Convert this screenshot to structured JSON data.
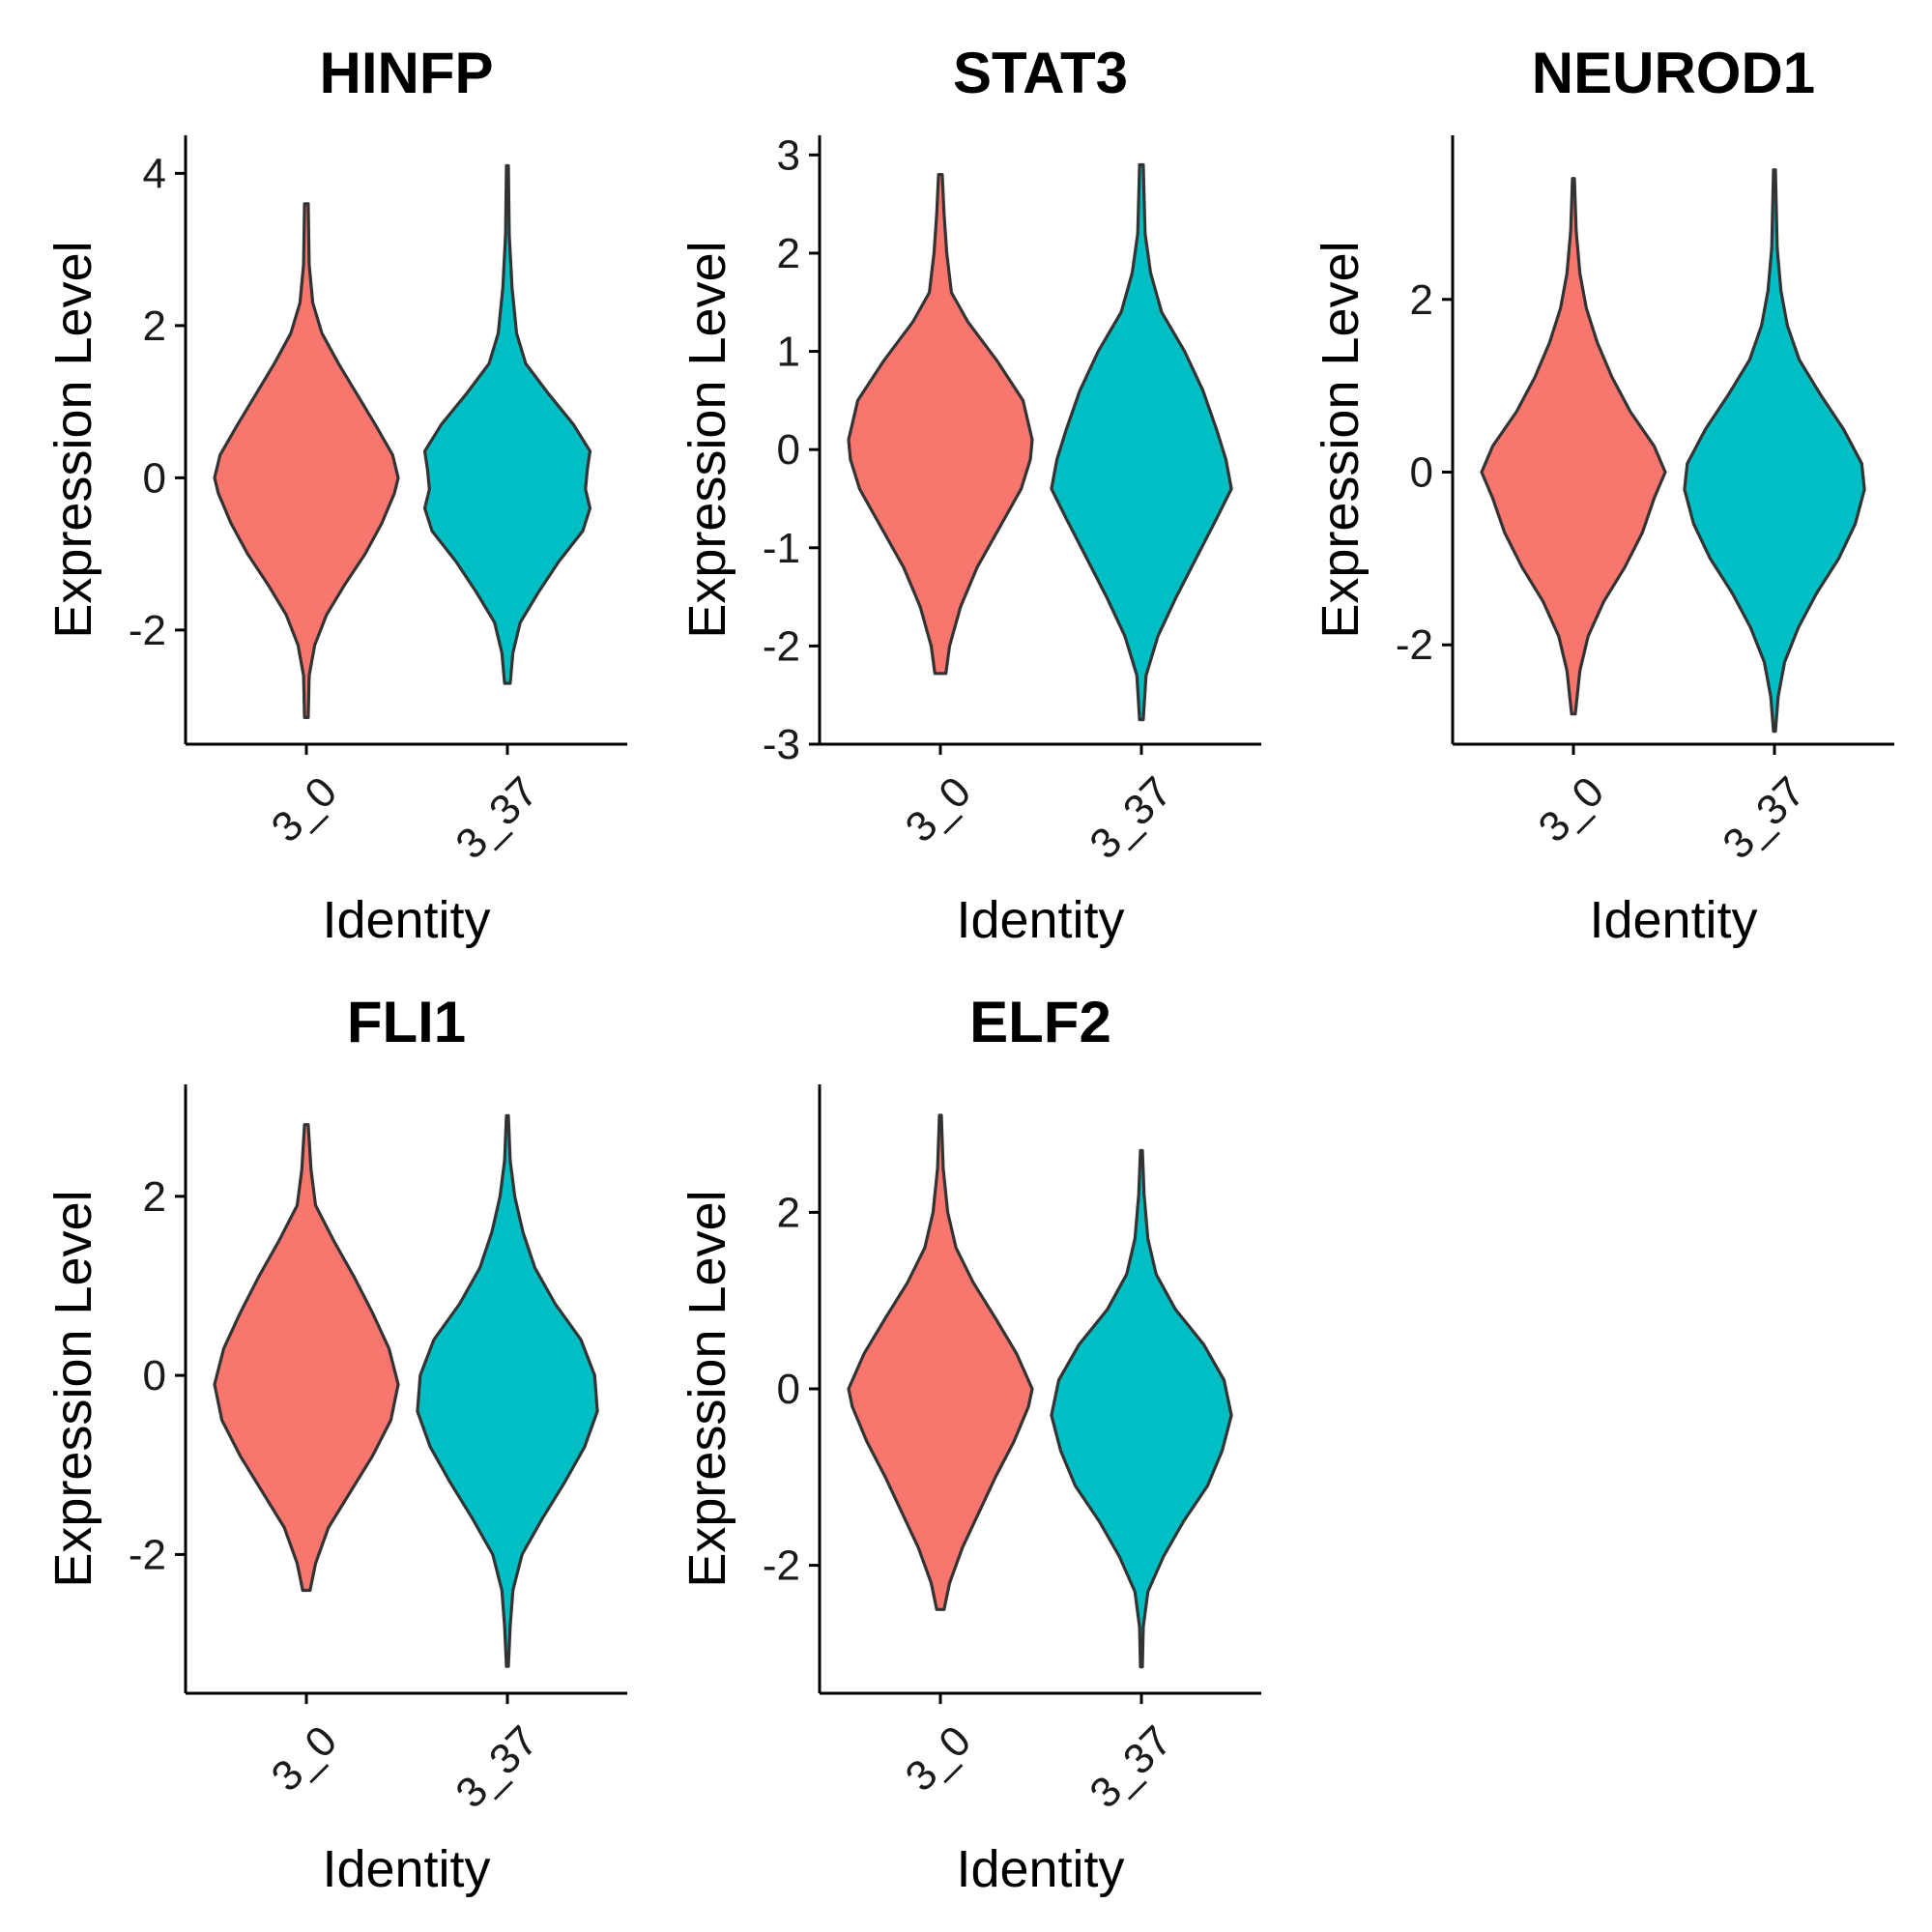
{
  "chart_data": [
    {
      "type": "violin",
      "title": "HINFP",
      "xlabel": "Identity",
      "ylabel": "Expression Level",
      "categories": [
        "3_0",
        "3_37"
      ],
      "colors": [
        "#F8766D",
        "#00BFC4"
      ],
      "ylim": [
        -3.5,
        4.5
      ],
      "yticks": [
        -2,
        0,
        2,
        4
      ],
      "ytick_labels": [
        "-2",
        "0",
        "2",
        "4"
      ],
      "series": [
        {
          "category": "3_0",
          "min": -3.15,
          "max": 3.6,
          "profile": [
            [
              -3.15,
              0.02
            ],
            [
              -2.6,
              0.03
            ],
            [
              -2.2,
              0.09
            ],
            [
              -1.8,
              0.22
            ],
            [
              -1.4,
              0.42
            ],
            [
              -1.0,
              0.64
            ],
            [
              -0.6,
              0.82
            ],
            [
              -0.2,
              0.96
            ],
            [
              0.0,
              1.0
            ],
            [
              0.3,
              0.94
            ],
            [
              0.7,
              0.75
            ],
            [
              1.1,
              0.55
            ],
            [
              1.5,
              0.35
            ],
            [
              1.9,
              0.17
            ],
            [
              2.3,
              0.07
            ],
            [
              2.8,
              0.03
            ],
            [
              3.6,
              0.02
            ]
          ]
        },
        {
          "category": "3_37",
          "min": -2.7,
          "max": 4.1,
          "profile": [
            [
              -2.7,
              0.03
            ],
            [
              -2.3,
              0.06
            ],
            [
              -1.9,
              0.14
            ],
            [
              -1.5,
              0.34
            ],
            [
              -1.1,
              0.56
            ],
            [
              -0.7,
              0.82
            ],
            [
              -0.4,
              0.9
            ],
            [
              -0.15,
              0.85
            ],
            [
              0.1,
              0.87
            ],
            [
              0.35,
              0.9
            ],
            [
              0.7,
              0.72
            ],
            [
              1.1,
              0.45
            ],
            [
              1.5,
              0.2
            ],
            [
              1.9,
              0.1
            ],
            [
              2.5,
              0.05
            ],
            [
              3.2,
              0.02
            ],
            [
              4.1,
              0.01
            ]
          ]
        }
      ]
    },
    {
      "type": "violin",
      "title": "STAT3",
      "xlabel": "Identity",
      "ylabel": "Expression Level",
      "categories": [
        "3_0",
        "3_37"
      ],
      "colors": [
        "#F8766D",
        "#00BFC4"
      ],
      "ylim": [
        -3.0,
        3.2
      ],
      "yticks": [
        -3,
        -2,
        -1,
        0,
        1,
        2,
        3
      ],
      "ytick_labels": [
        "-3",
        "-2",
        "-1",
        "0",
        "1",
        "2",
        "3"
      ],
      "series": [
        {
          "category": "3_0",
          "min": -2.28,
          "max": 2.8,
          "profile": [
            [
              -2.28,
              0.06
            ],
            [
              -2.0,
              0.1
            ],
            [
              -1.6,
              0.22
            ],
            [
              -1.2,
              0.4
            ],
            [
              -0.8,
              0.64
            ],
            [
              -0.4,
              0.88
            ],
            [
              -0.1,
              0.98
            ],
            [
              0.1,
              1.0
            ],
            [
              0.5,
              0.9
            ],
            [
              0.9,
              0.62
            ],
            [
              1.3,
              0.3
            ],
            [
              1.6,
              0.12
            ],
            [
              2.0,
              0.07
            ],
            [
              2.4,
              0.04
            ],
            [
              2.8,
              0.02
            ]
          ]
        },
        {
          "category": "3_37",
          "min": -2.75,
          "max": 2.9,
          "profile": [
            [
              -2.75,
              0.02
            ],
            [
              -2.3,
              0.05
            ],
            [
              -1.9,
              0.18
            ],
            [
              -1.5,
              0.38
            ],
            [
              -1.1,
              0.6
            ],
            [
              -0.7,
              0.82
            ],
            [
              -0.4,
              0.98
            ],
            [
              -0.1,
              0.92
            ],
            [
              0.2,
              0.82
            ],
            [
              0.6,
              0.67
            ],
            [
              1.0,
              0.47
            ],
            [
              1.4,
              0.22
            ],
            [
              1.8,
              0.1
            ],
            [
              2.2,
              0.04
            ],
            [
              2.9,
              0.02
            ]
          ]
        }
      ]
    },
    {
      "type": "violin",
      "title": "NEUROD1",
      "xlabel": "Identity",
      "ylabel": "Expression Level",
      "categories": [
        "3_0",
        "3_37"
      ],
      "colors": [
        "#F8766D",
        "#00BFC4"
      ],
      "ylim": [
        -3.15,
        3.9
      ],
      "yticks": [
        -2,
        0,
        2
      ],
      "ytick_labels": [
        "-2",
        "0",
        "2"
      ],
      "series": [
        {
          "category": "3_0",
          "min": -2.8,
          "max": 3.4,
          "profile": [
            [
              -2.8,
              0.02
            ],
            [
              -2.3,
              0.07
            ],
            [
              -1.9,
              0.16
            ],
            [
              -1.5,
              0.33
            ],
            [
              -1.1,
              0.56
            ],
            [
              -0.7,
              0.75
            ],
            [
              -0.3,
              0.88
            ],
            [
              0.0,
              1.0
            ],
            [
              0.3,
              0.88
            ],
            [
              0.7,
              0.62
            ],
            [
              1.1,
              0.42
            ],
            [
              1.5,
              0.26
            ],
            [
              1.9,
              0.14
            ],
            [
              2.3,
              0.07
            ],
            [
              2.8,
              0.03
            ],
            [
              3.4,
              0.01
            ]
          ]
        },
        {
          "category": "3_37",
          "min": -3.0,
          "max": 3.5,
          "profile": [
            [
              -3.0,
              0.01
            ],
            [
              -2.6,
              0.04
            ],
            [
              -2.2,
              0.11
            ],
            [
              -1.8,
              0.26
            ],
            [
              -1.4,
              0.46
            ],
            [
              -1.0,
              0.7
            ],
            [
              -0.6,
              0.88
            ],
            [
              -0.2,
              0.98
            ],
            [
              0.1,
              0.95
            ],
            [
              0.5,
              0.75
            ],
            [
              0.9,
              0.5
            ],
            [
              1.3,
              0.27
            ],
            [
              1.7,
              0.14
            ],
            [
              2.1,
              0.07
            ],
            [
              2.6,
              0.03
            ],
            [
              3.5,
              0.01
            ]
          ]
        }
      ]
    },
    {
      "type": "violin",
      "title": "FLI1",
      "xlabel": "Identity",
      "ylabel": "Expression Level",
      "categories": [
        "3_0",
        "3_37"
      ],
      "colors": [
        "#F8766D",
        "#00BFC4"
      ],
      "ylim": [
        -3.55,
        3.25
      ],
      "yticks": [
        -2,
        0,
        2
      ],
      "ytick_labels": [
        "-2",
        "0",
        "2"
      ],
      "series": [
        {
          "category": "3_0",
          "min": -2.4,
          "max": 2.8,
          "profile": [
            [
              -2.4,
              0.04
            ],
            [
              -2.1,
              0.1
            ],
            [
              -1.7,
              0.24
            ],
            [
              -1.3,
              0.48
            ],
            [
              -0.9,
              0.72
            ],
            [
              -0.5,
              0.92
            ],
            [
              -0.1,
              1.0
            ],
            [
              0.3,
              0.9
            ],
            [
              0.7,
              0.72
            ],
            [
              1.1,
              0.52
            ],
            [
              1.5,
              0.3
            ],
            [
              1.9,
              0.1
            ],
            [
              2.3,
              0.05
            ],
            [
              2.8,
              0.02
            ]
          ]
        },
        {
          "category": "3_37",
          "min": -3.25,
          "max": 2.9,
          "profile": [
            [
              -3.25,
              0.01
            ],
            [
              -2.8,
              0.03
            ],
            [
              -2.4,
              0.06
            ],
            [
              -2.0,
              0.16
            ],
            [
              -1.6,
              0.38
            ],
            [
              -1.2,
              0.62
            ],
            [
              -0.8,
              0.84
            ],
            [
              -0.4,
              0.98
            ],
            [
              0.0,
              0.95
            ],
            [
              0.4,
              0.8
            ],
            [
              0.8,
              0.52
            ],
            [
              1.2,
              0.3
            ],
            [
              1.6,
              0.17
            ],
            [
              2.0,
              0.08
            ],
            [
              2.4,
              0.03
            ],
            [
              2.9,
              0.01
            ]
          ]
        }
      ]
    },
    {
      "type": "violin",
      "title": "ELF2",
      "xlabel": "Identity",
      "ylabel": "Expression Level",
      "categories": [
        "3_0",
        "3_37"
      ],
      "colors": [
        "#F8766D",
        "#00BFC4"
      ],
      "ylim": [
        -3.45,
        3.45
      ],
      "yticks": [
        -2,
        0,
        2
      ],
      "ytick_labels": [
        "-2",
        "0",
        "2"
      ],
      "series": [
        {
          "category": "3_0",
          "min": -2.5,
          "max": 3.1,
          "profile": [
            [
              -2.5,
              0.04
            ],
            [
              -2.2,
              0.1
            ],
            [
              -1.8,
              0.24
            ],
            [
              -1.4,
              0.42
            ],
            [
              -1.0,
              0.6
            ],
            [
              -0.6,
              0.8
            ],
            [
              -0.2,
              0.96
            ],
            [
              0.0,
              1.0
            ],
            [
              0.4,
              0.83
            ],
            [
              0.8,
              0.6
            ],
            [
              1.2,
              0.36
            ],
            [
              1.6,
              0.17
            ],
            [
              2.0,
              0.08
            ],
            [
              2.5,
              0.03
            ],
            [
              3.1,
              0.01
            ]
          ]
        },
        {
          "category": "3_37",
          "min": -3.15,
          "max": 2.7,
          "profile": [
            [
              -3.15,
              0.01
            ],
            [
              -2.7,
              0.02
            ],
            [
              -2.3,
              0.07
            ],
            [
              -1.9,
              0.24
            ],
            [
              -1.5,
              0.46
            ],
            [
              -1.1,
              0.72
            ],
            [
              -0.7,
              0.88
            ],
            [
              -0.3,
              0.98
            ],
            [
              0.1,
              0.9
            ],
            [
              0.5,
              0.68
            ],
            [
              0.9,
              0.37
            ],
            [
              1.3,
              0.16
            ],
            [
              1.7,
              0.07
            ],
            [
              2.2,
              0.03
            ],
            [
              2.7,
              0.01
            ]
          ]
        }
      ]
    }
  ]
}
